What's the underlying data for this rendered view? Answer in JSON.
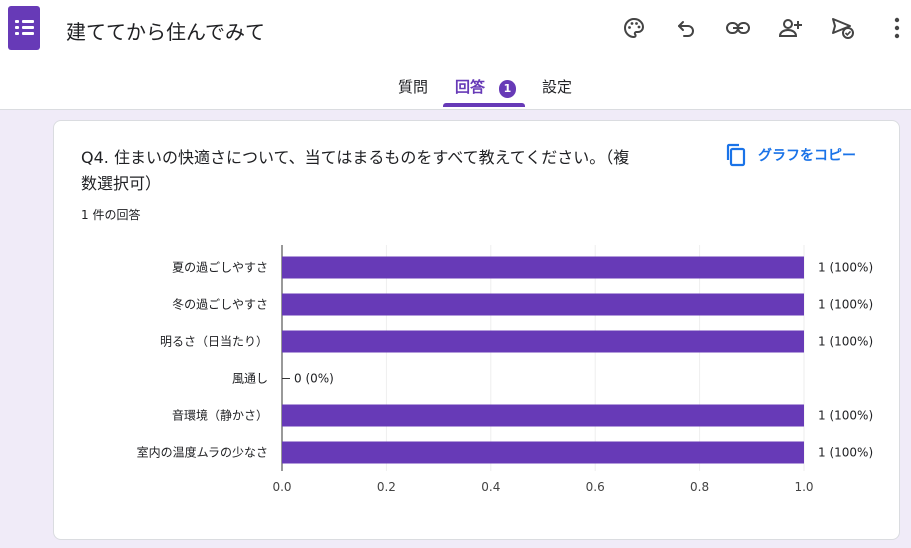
{
  "header": {
    "title": "建ててから住んでみて",
    "icons": [
      "palette-icon",
      "undo-icon",
      "link-icon",
      "add-person-icon",
      "publish-icon",
      "more-vert-icon"
    ]
  },
  "tabs": [
    {
      "label": "質問",
      "active": false
    },
    {
      "label": "回答",
      "active": true,
      "badge": "1"
    },
    {
      "label": "設定",
      "active": false
    }
  ],
  "card": {
    "question_line1": "Q4. 住まいの快適さについて、当てはまるものをすべて教えてください。（複",
    "question_line2": "数選択可）",
    "response_count": "1 件の回答",
    "copy_label": "グラフをコピー"
  },
  "chart_data": {
    "type": "bar",
    "orientation": "horizontal",
    "categories": [
      "夏の過ごしやすさ",
      "冬の過ごしやすさ",
      "明るさ（日当たり）",
      "風通し",
      "音環境（静かさ）",
      "室内の温度ムラの少なさ"
    ],
    "values": [
      1,
      1,
      1,
      0,
      1,
      1
    ],
    "value_labels": [
      "1 (100%)",
      "1 (100%)",
      "1 (100%)",
      "0 (0%)",
      "1 (100%)",
      "1 (100%)"
    ],
    "xlim": [
      0,
      1.0
    ],
    "xticks": [
      "0.0",
      "0.2",
      "0.4",
      "0.6",
      "0.8",
      "1.0"
    ],
    "bar_color": "#673ab7",
    "grid": true
  },
  "colors": {
    "accent": "#673ab7",
    "link": "#1a73e8",
    "background": "#f0ebf8"
  }
}
